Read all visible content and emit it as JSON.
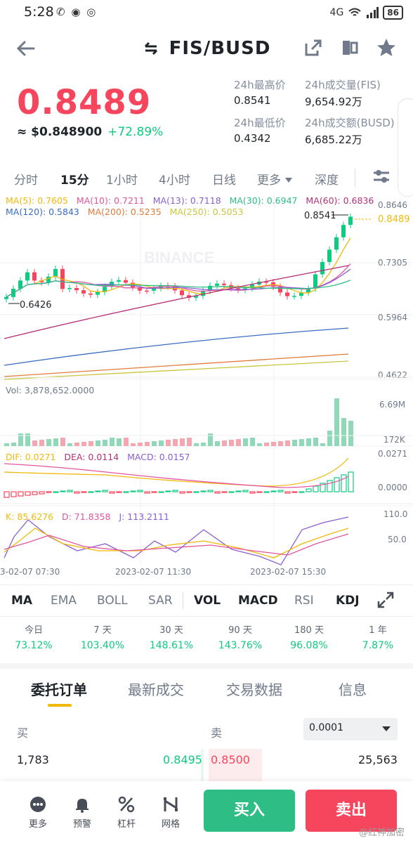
{
  "status": {
    "time": "5:28",
    "apps": "✆ ◉ ◎",
    "signal": "4G",
    "battery": "86"
  },
  "header": {
    "title": "FIS/BUSD"
  },
  "price": {
    "last": "0.8489",
    "usd": "≈ $0.848900",
    "change": "+72.89%"
  },
  "stats": {
    "high_label": "24h最高价",
    "high": "0.8541",
    "low_label": "24h最低价",
    "low": "0.4342",
    "vol_fis_label": "24h成交量(FIS)",
    "vol_fis": "9,654.92万",
    "vol_busd_label": "24h成交额(BUSD)",
    "vol_busd": "6,685.22万"
  },
  "tabs": {
    "t1": "分时",
    "t2": "15分",
    "t3": "1小时",
    "t4": "4小时",
    "t5": "日线",
    "t6": "更多",
    "t7": "深度"
  },
  "legend": {
    "ma5": "MA(5): 0.7605",
    "ma10": "MA(10): 0.7211",
    "ma13": "MA(13): 0.7118",
    "ma30": "MA(30): 0.6947",
    "ma60": "MA(60): 0.6836",
    "ma120": "MA(120): 0.5843",
    "ma200": "MA(200): 0.5235",
    "ma250": "MA(250): 0.5053",
    "vol": "Vol: 3,878,652.0000",
    "dif": "DIF: 0.0271",
    "dea": "DEA: 0.0114",
    "macd": "MACD: 0.0157",
    "k": "K: 85.6276",
    "d": "D: 71.8358",
    "j": "J: 113.2111"
  },
  "axis": {
    "p1": "0.8646",
    "p2": "0.8489",
    "p3": "0.7305",
    "p4": "0.5964",
    "p5": "0.4622",
    "v1": "6.69M",
    "v2": "172K",
    "m1": "0.0271",
    "m2": "0.0000",
    "k1": "110.0",
    "k2": "50.0",
    "t1": "3-02-07 07:30",
    "t2": "2023-02-07 11:30",
    "t3": "2023-02-07 15:30",
    "hi_mark": "0.8541",
    "lo_mark": "0.6426",
    "brand": "BINANCE"
  },
  "colors": {
    "up": "#0ecb81",
    "down": "#f6465d",
    "ma5": "#f0b90b",
    "ma10": "#e056a0",
    "ma13": "#8b5fd2",
    "ma30": "#2ebd85",
    "ma60": "#b5307a",
    "ma120": "#3b6bc2",
    "ma200": "#e07c3c",
    "ma250": "#c8c640"
  },
  "indicators": {
    "i1": "MA",
    "i2": "EMA",
    "i3": "BOLL",
    "i4": "SAR",
    "i5": "VOL",
    "i6": "MACD",
    "i7": "RSI",
    "i8": "KDJ"
  },
  "perf": [
    {
      "p": "今日",
      "v": "73.12%"
    },
    {
      "p": "7 天",
      "v": "103.40%"
    },
    {
      "p": "30 天",
      "v": "148.61%"
    },
    {
      "p": "90 天",
      "v": "143.76%"
    },
    {
      "p": "180 天",
      "v": "96.08%"
    },
    {
      "p": "1 年",
      "v": "7.87%"
    }
  ],
  "order_tabs": {
    "o1": "委托订单",
    "o2": "最新成交",
    "o3": "交易数据",
    "o4": "信息"
  },
  "book": {
    "buy": "买",
    "sell": "卖",
    "precision": "0.0001",
    "bid_qty": "1,783",
    "bid_price": "0.8495",
    "ask_price": "0.8500",
    "ask_qty": "25,563"
  },
  "bottom": {
    "more": "更多",
    "alert": "预警",
    "margin": "杠杆",
    "grid": "网格",
    "buy": "买入",
    "sell": "卖出"
  },
  "watermark": "@红神加密"
}
